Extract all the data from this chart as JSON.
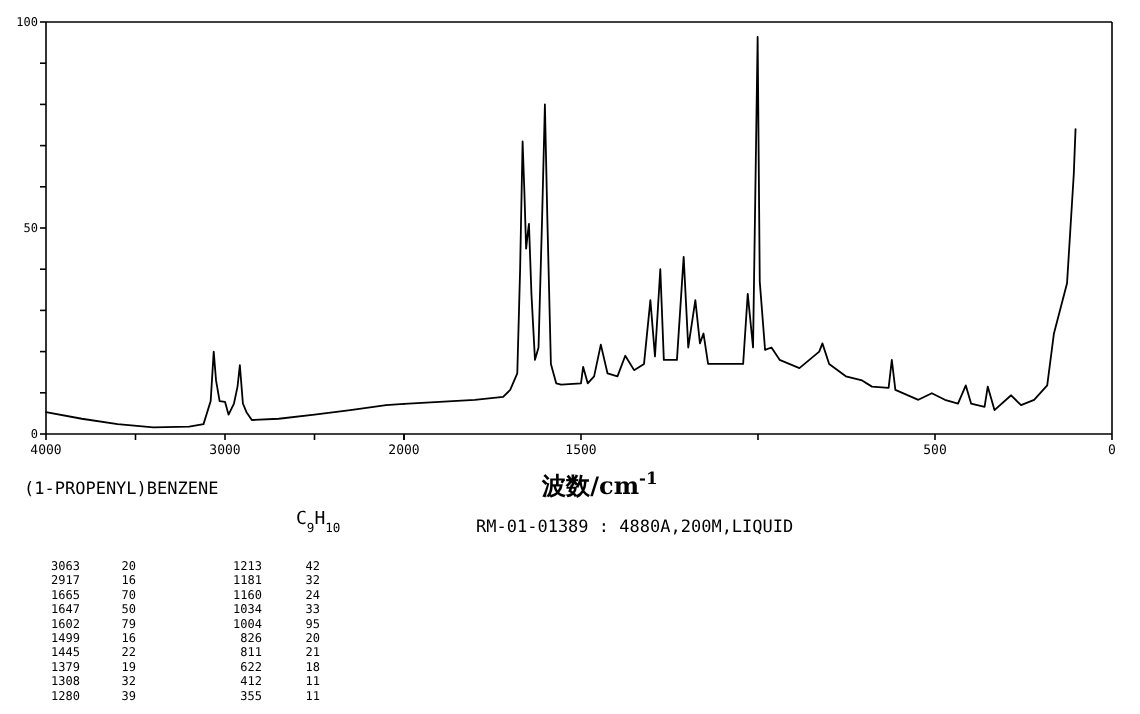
{
  "chart_data": [
    {
      "type": "line",
      "title": "(1-PROPENYL)BENZENE",
      "subtitle": "C$_{9}$H$_{10}$",
      "color": "#000000",
      "x": [
        4000,
        3800,
        3600,
        3400,
        3200,
        3120,
        3080,
        3063,
        3050,
        3030,
        3000,
        2980,
        2950,
        2930,
        2917,
        2900,
        2880,
        2850,
        2700,
        2500,
        2300,
        2100,
        2000
      ],
      "values": [
        5.3,
        3.7,
        2.4,
        1.6,
        1.8,
        2.4,
        8,
        20,
        13,
        8,
        7.8,
        4.7,
        7.4,
        11.5,
        16.7,
        7.4,
        5.3,
        3.4,
        3.7,
        4.7,
        5.8,
        7,
        7.3
      ],
      "xlim": [
        4000,
        2000
      ],
      "ylim": [
        0,
        100
      ],
      "xticks": [
        4000,
        {
          "value": 3500,
          "label": null
        },
        3000,
        {
          "value": 2500,
          "label": null
        },
        2000
      ],
      "yticks": [
        0,
        {
          "value": 10,
          "label": null
        },
        {
          "value": 20,
          "label": null
        },
        {
          "value": 30,
          "label": null
        },
        {
          "value": 40,
          "label": null
        },
        50,
        {
          "value": 60,
          "label": null
        },
        {
          "value": 70,
          "label": null
        },
        {
          "value": 80,
          "label": null
        },
        {
          "value": 90,
          "label": null
        },
        100
      ],
      "annotations": [
        "RM-01-01389 : 4880A,200M,LIQUID",
        "3063",
        "20",
        "1213",
        "42",
        "2917",
        "16",
        "1181",
        "32",
        "1665",
        "70",
        "1160",
        "24",
        "1647",
        "50",
        "1034",
        "33",
        "1602",
        "79",
        "1004",
        "95",
        "1499",
        "16",
        "826",
        "20",
        "1445",
        "22",
        "811",
        "21",
        "1379",
        "19",
        "622",
        "18",
        "1308",
        "32",
        "412",
        "11",
        "1280",
        "39",
        "355",
        "11"
      ]
    },
    {
      "type": "line",
      "xlabel": "波数/cm$^{-1}$",
      "color": "#000000",
      "tick_labels": "x",
      "x": [
        2000,
        1900,
        1800,
        1720,
        1700,
        1680,
        1672,
        1665,
        1660,
        1655,
        1650,
        1647,
        1640,
        1630,
        1620,
        1610,
        1602,
        1595,
        1585,
        1570,
        1556,
        1500,
        1494,
        1481,
        1463,
        1444,
        1425,
        1397,
        1375,
        1350,
        1322,
        1304,
        1291,
        1276,
        1266,
        1229,
        1210,
        1197,
        1177,
        1164,
        1154,
        1141,
        1070,
        1042,
        1029,
        1014,
        1001,
        995,
        980,
        962,
        939,
        883,
        827,
        818,
        799,
        752,
        706,
        678,
        631,
        622,
        612,
        547,
        509,
        472,
        435,
        413,
        398,
        360,
        351,
        332,
        285,
        257,
        220,
        183,
        164,
        127,
        108,
        103
      ],
      "values": [
        7.3,
        7.8,
        8.3,
        9,
        10.7,
        14.7,
        40,
        71,
        59,
        45,
        49,
        51,
        34,
        18,
        21,
        52,
        80,
        52,
        17,
        12.3,
        12,
        12.3,
        16.3,
        12.3,
        14,
        21.7,
        14.7,
        14,
        19,
        15.5,
        17,
        32.5,
        18.8,
        40,
        18,
        18,
        43,
        21,
        32.5,
        22,
        24.4,
        17,
        17,
        17,
        34,
        21,
        96.4,
        37,
        20.4,
        21,
        18,
        16,
        20,
        22,
        17,
        14,
        13,
        11.5,
        11.2,
        18,
        10.7,
        8.3,
        9.9,
        8.3,
        7.4,
        11.8,
        7.4,
        6.6,
        11.5,
        5.8,
        9.4,
        7,
        8.3,
        11.8,
        24.4,
        36.6,
        63,
        74
      ],
      "xlim": [
        2000,
        0
      ],
      "ylim": [
        0,
        100
      ],
      "xticks": [
        {
          "value": 2000,
          "label": null
        },
        1500,
        {
          "value": 1000,
          "label": null
        },
        500,
        0
      ],
      "yticks": [
        0,
        50,
        100
      ]
    }
  ]
}
